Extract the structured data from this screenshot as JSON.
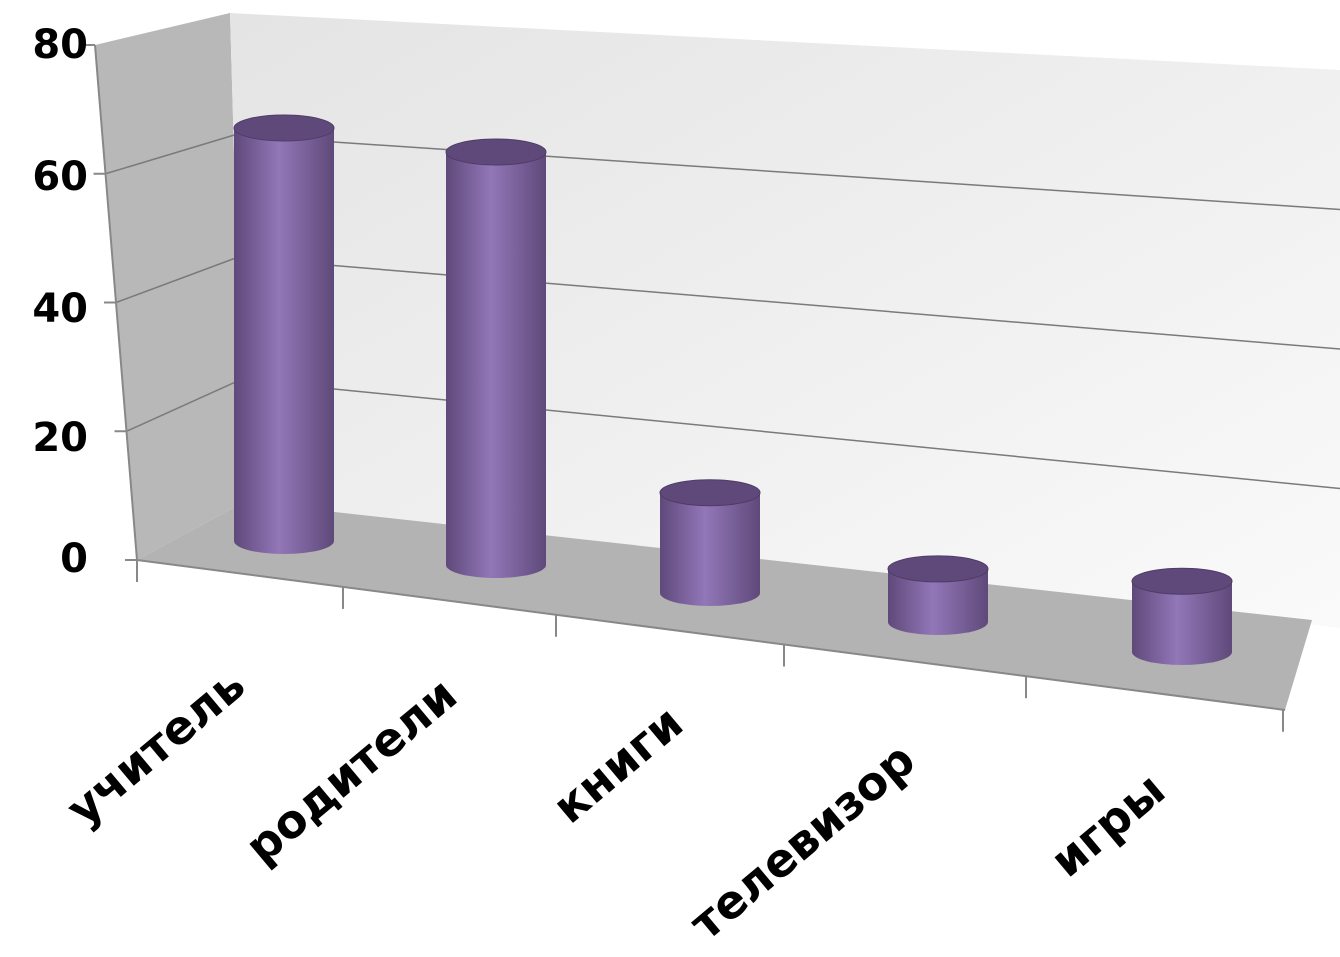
{
  "chart_data": {
    "type": "bar",
    "style": "3d-cylinder",
    "categories": [
      "учитель",
      "родители",
      "книги",
      "телевизор",
      "игры"
    ],
    "values": [
      70,
      70,
      17,
      9,
      12
    ],
    "ylim": [
      0,
      80
    ],
    "yticks": [
      "0",
      "20",
      "40",
      "60",
      "80"
    ],
    "grid": true,
    "legend": "none",
    "colors": {
      "bar": "#8064a2",
      "bar_dark": "#5f497a",
      "bar_light": "#9d86c0",
      "floor": "#b3b3b3",
      "side_wall": "#b8b8b8",
      "back_wall": "#f0f0f0"
    }
  }
}
